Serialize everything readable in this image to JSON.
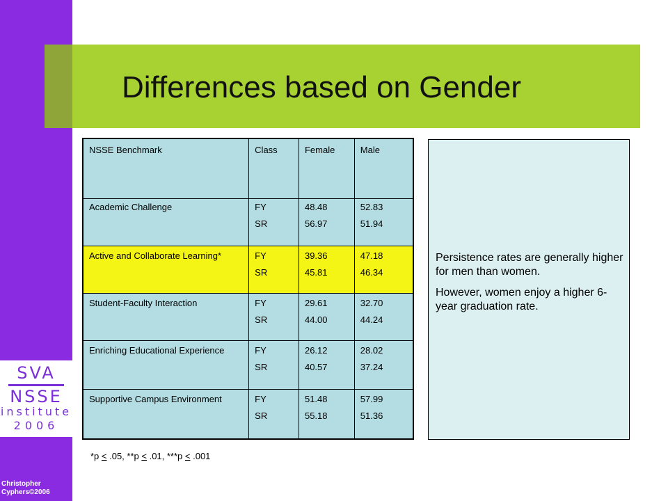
{
  "slide": {
    "title": "Differences based on Gender",
    "author": "Christopher Cyphers©2006"
  },
  "logo": {
    "line1": "SVA",
    "line2": "NSSE",
    "line3": "institute",
    "line4": "2006"
  },
  "table": {
    "headers": [
      "NSSE Benchmark",
      "Class",
      "Female",
      "Male"
    ],
    "rows": [
      {
        "benchmark": "Academic Challenge",
        "class_1": "FY",
        "class_2": "SR",
        "female_1": "48.48",
        "female_2": "56.97",
        "male_1": "52.83",
        "male_2": "51.94"
      },
      {
        "benchmark": "Active and Collaborate Learning*",
        "class_1": "FY",
        "class_2": "SR",
        "female_1": "39.36",
        "female_2": "45.81",
        "male_1": "47.18",
        "male_2": "46.34"
      },
      {
        "benchmark": "Student-Faculty Interaction",
        "class_1": "FY",
        "class_2": "SR",
        "female_1": "29.61",
        "female_2": "44.00",
        "male_1": "32.70",
        "male_2": "44.24"
      },
      {
        "benchmark": "Enriching Educational Experience",
        "class_1": "FY",
        "class_2": "SR",
        "female_1": "26.12",
        "female_2": "40.57",
        "male_1": "28.02",
        "male_2": "37.24"
      },
      {
        "benchmark": "Supportive Campus Environment",
        "class_1": "FY",
        "class_2": "SR",
        "female_1": "51.48",
        "female_2": "55.18",
        "male_1": "57.99",
        "male_2": "51.36"
      }
    ],
    "highlight_color": "#f5f515"
  },
  "footnote": {
    "a": "*p ",
    "lt1": "<",
    "b": " .05, **p ",
    "lt2": "<",
    "c": " .01, ***p ",
    "lt3": "<",
    "d": " .001"
  },
  "note": {
    "p1": "Persistence rates are generally higher for men than women.",
    "p2": "However, women enjoy a higher 6-year graduation rate."
  },
  "colors": {
    "sidebar": "#8a2be2",
    "title_band": "#a8d232",
    "table_bg": "#b3dde3",
    "note_bg": "#dceff1"
  }
}
